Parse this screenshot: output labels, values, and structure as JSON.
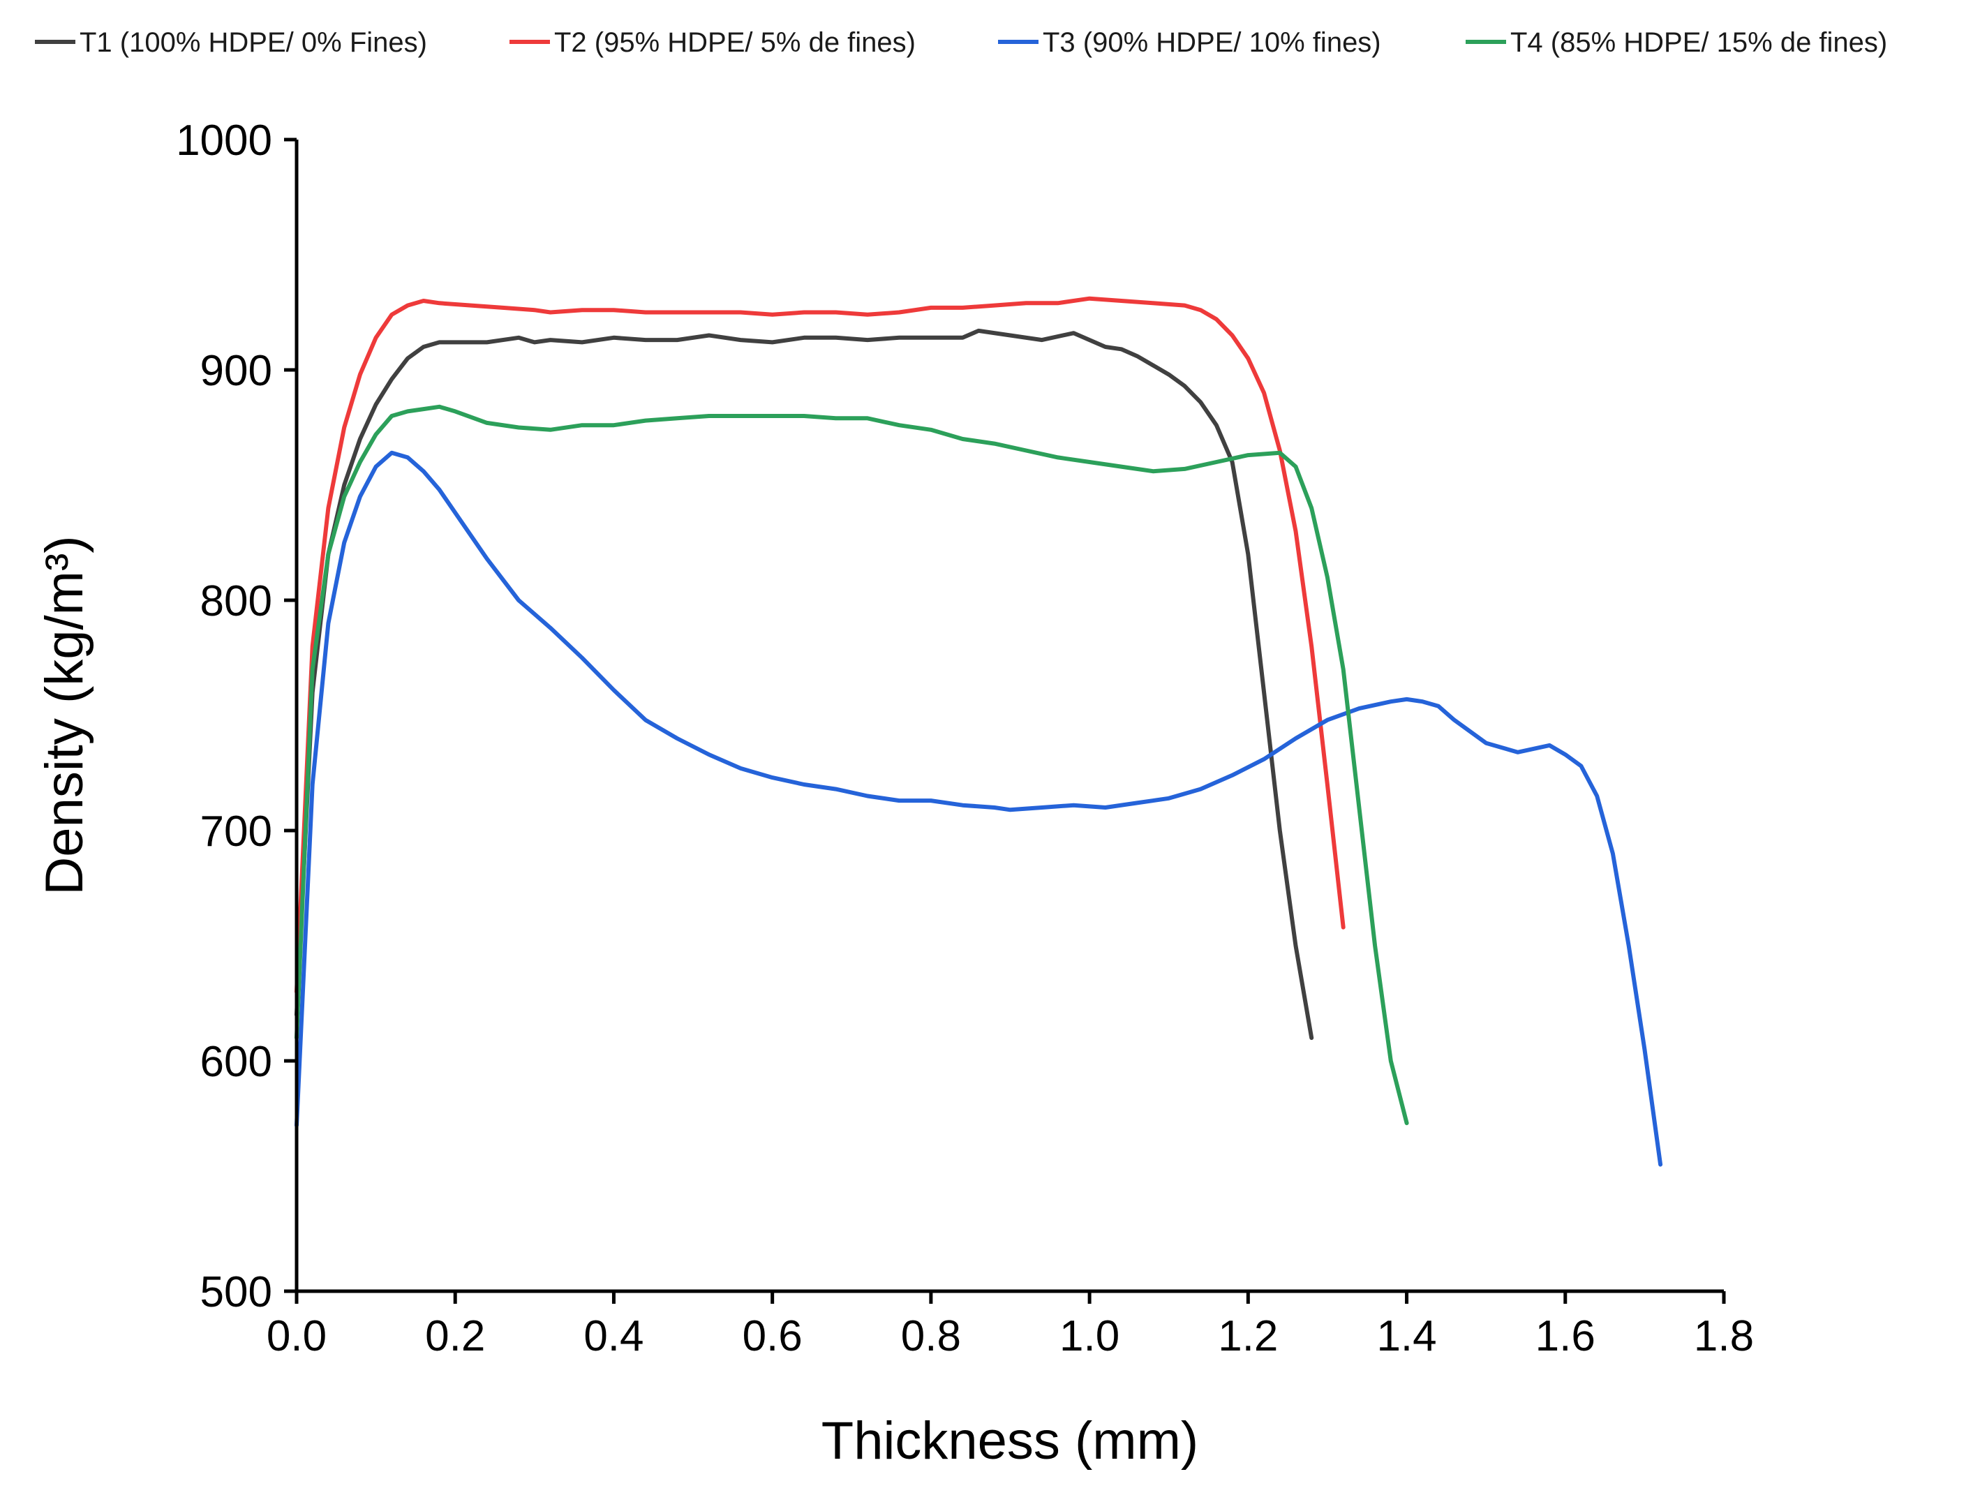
{
  "chart_data": {
    "type": "line",
    "title": "",
    "xlabel": "Thickness (mm)",
    "ylabel": "Density (kg/m³)",
    "xlim": [
      0.0,
      1.8
    ],
    "ylim": [
      500,
      1000
    ],
    "xticks": [
      0.0,
      0.2,
      0.4,
      0.6,
      0.8,
      1.0,
      1.2,
      1.4,
      1.6,
      1.8
    ],
    "xtick_labels": [
      "0.0",
      "0.2",
      "0.4",
      "0.6",
      "0.8",
      "1.0",
      "1.2",
      "1.4",
      "1.6",
      "1.8"
    ],
    "yticks": [
      500,
      600,
      700,
      800,
      900,
      1000
    ],
    "ytick_labels": [
      "500",
      "600",
      "700",
      "800",
      "900",
      "1000"
    ],
    "grid": false,
    "legend_position": "top",
    "series": [
      {
        "name": "T1 (100% HDPE/ 0% Fines)",
        "color": "#404040",
        "x": [
          0.0,
          0.02,
          0.04,
          0.06,
          0.08,
          0.1,
          0.12,
          0.14,
          0.16,
          0.18,
          0.2,
          0.24,
          0.28,
          0.3,
          0.32,
          0.36,
          0.4,
          0.44,
          0.48,
          0.52,
          0.56,
          0.6,
          0.64,
          0.68,
          0.72,
          0.76,
          0.8,
          0.84,
          0.86,
          0.9,
          0.94,
          0.98,
          1.0,
          1.02,
          1.04,
          1.06,
          1.08,
          1.1,
          1.12,
          1.14,
          1.16,
          1.18,
          1.2,
          1.22,
          1.24,
          1.26,
          1.28
        ],
        "y": [
          620,
          760,
          820,
          850,
          870,
          885,
          896,
          905,
          910,
          912,
          912,
          912,
          914,
          912,
          913,
          912,
          914,
          913,
          913,
          915,
          913,
          912,
          914,
          914,
          913,
          914,
          914,
          914,
          917,
          915,
          913,
          916,
          913,
          910,
          909,
          906,
          902,
          898,
          893,
          886,
          876,
          860,
          820,
          760,
          700,
          650,
          610
        ]
      },
      {
        "name": "T2 (95% HDPE/ 5% de fines)",
        "color": "#ee3a3a",
        "x": [
          0.0,
          0.02,
          0.04,
          0.06,
          0.08,
          0.1,
          0.12,
          0.14,
          0.16,
          0.18,
          0.22,
          0.26,
          0.3,
          0.32,
          0.36,
          0.4,
          0.44,
          0.48,
          0.52,
          0.56,
          0.6,
          0.64,
          0.68,
          0.72,
          0.76,
          0.8,
          0.84,
          0.88,
          0.92,
          0.96,
          1.0,
          1.04,
          1.08,
          1.12,
          1.14,
          1.16,
          1.18,
          1.2,
          1.22,
          1.24,
          1.26,
          1.28,
          1.3,
          1.32
        ],
        "y": [
          630,
          780,
          840,
          875,
          898,
          914,
          924,
          928,
          930,
          929,
          928,
          927,
          926,
          925,
          926,
          926,
          925,
          925,
          925,
          925,
          924,
          925,
          925,
          924,
          925,
          927,
          927,
          928,
          929,
          929,
          931,
          930,
          929,
          928,
          926,
          922,
          915,
          905,
          890,
          865,
          830,
          780,
          720,
          658
        ]
      },
      {
        "name": "T3 (90% HDPE/ 10% fines)",
        "color": "#2563d9",
        "x": [
          0.0,
          0.02,
          0.04,
          0.06,
          0.08,
          0.1,
          0.12,
          0.14,
          0.16,
          0.18,
          0.2,
          0.24,
          0.28,
          0.32,
          0.36,
          0.4,
          0.44,
          0.48,
          0.52,
          0.56,
          0.6,
          0.64,
          0.68,
          0.72,
          0.76,
          0.8,
          0.84,
          0.88,
          0.9,
          0.94,
          0.98,
          1.02,
          1.06,
          1.1,
          1.14,
          1.18,
          1.22,
          1.26,
          1.3,
          1.34,
          1.38,
          1.4,
          1.42,
          1.44,
          1.46,
          1.5,
          1.54,
          1.58,
          1.6,
          1.62,
          1.64,
          1.66,
          1.68,
          1.7,
          1.72
        ],
        "y": [
          572,
          720,
          790,
          825,
          845,
          858,
          864,
          862,
          856,
          848,
          838,
          818,
          800,
          788,
          775,
          761,
          748,
          740,
          733,
          727,
          723,
          720,
          718,
          715,
          713,
          713,
          711,
          710,
          709,
          710,
          711,
          710,
          712,
          714,
          718,
          724,
          731,
          740,
          748,
          753,
          756,
          757,
          756,
          754,
          748,
          738,
          734,
          737,
          733,
          728,
          715,
          690,
          650,
          605,
          555
        ]
      },
      {
        "name": "T4 (85% HDPE/ 15% de fines)",
        "color": "#2ca05a",
        "x": [
          0.0,
          0.02,
          0.04,
          0.06,
          0.08,
          0.1,
          0.12,
          0.14,
          0.16,
          0.18,
          0.2,
          0.24,
          0.28,
          0.32,
          0.36,
          0.4,
          0.44,
          0.48,
          0.52,
          0.56,
          0.6,
          0.64,
          0.68,
          0.72,
          0.76,
          0.8,
          0.84,
          0.88,
          0.92,
          0.96,
          1.0,
          1.04,
          1.08,
          1.12,
          1.16,
          1.2,
          1.24,
          1.26,
          1.28,
          1.3,
          1.32,
          1.34,
          1.36,
          1.38,
          1.4
        ],
        "y": [
          610,
          770,
          820,
          845,
          860,
          872,
          880,
          882,
          883,
          884,
          882,
          877,
          875,
          874,
          876,
          876,
          878,
          879,
          880,
          880,
          880,
          880,
          879,
          879,
          876,
          874,
          870,
          868,
          865,
          862,
          860,
          858,
          856,
          857,
          860,
          863,
          864,
          858,
          840,
          810,
          770,
          710,
          650,
          600,
          573
        ]
      }
    ]
  }
}
